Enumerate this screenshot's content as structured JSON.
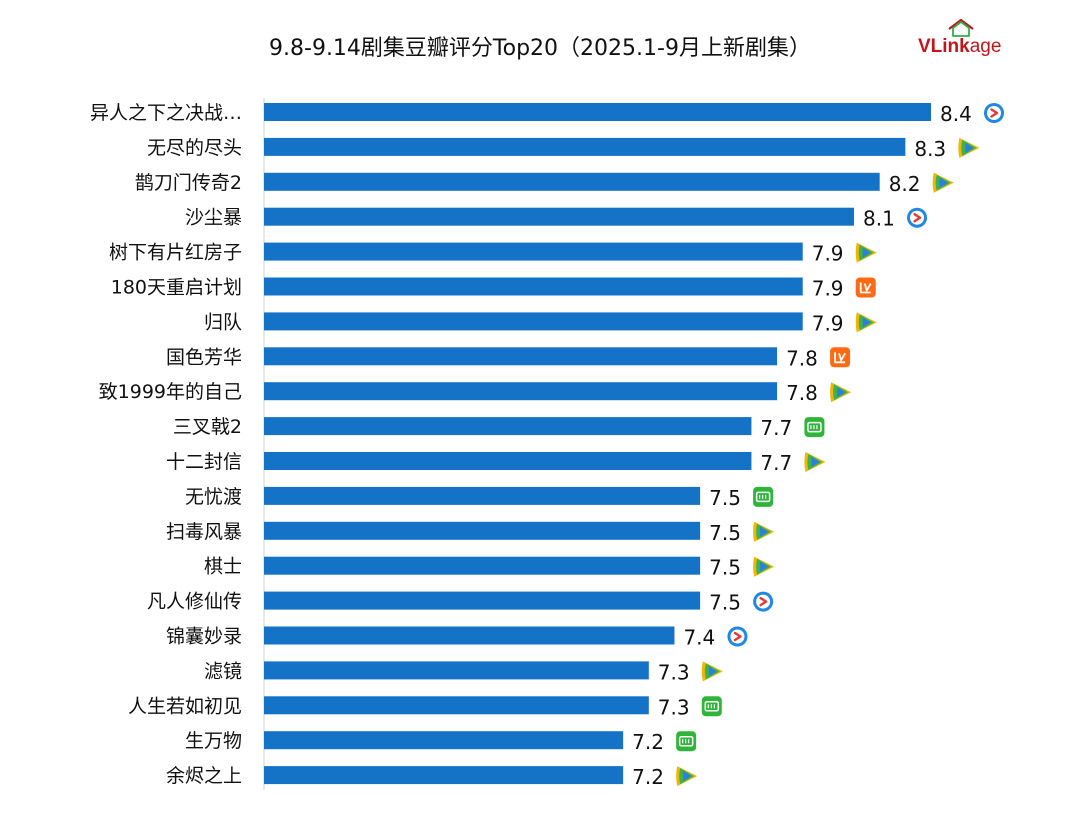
{
  "title": "9.8-9.14剧集豆瓣评分Top20（2025.1-9月上新剧集）",
  "brand": {
    "part1": "VLink",
    "part2": "age",
    "colors": {
      "primary": "#c3161c",
      "accent": "#2db34a"
    }
  },
  "platform_icons": {
    "youku": {
      "icon": "youku-icon",
      "color": "#1e88e5",
      "accent": "#e53935"
    },
    "tencent": {
      "icon": "tencent-video-icon",
      "color": "#2e7de1",
      "accent": "#f5b400",
      "accent2": "#3cb44b"
    },
    "mango": {
      "icon": "mango-tv-icon",
      "color": "#ff6a13"
    },
    "iqiyi": {
      "icon": "iqiyi-icon",
      "color": "#2fb53a"
    }
  },
  "chart_data": {
    "type": "bar",
    "orientation": "horizontal",
    "bar_color": "#1573c7",
    "categories": [
      "异人之下之决战…",
      "无尽的尽头",
      "鹊刀门传奇2",
      "沙尘暴",
      "树下有片红房子",
      "180天重启计划",
      "归队",
      "国色芳华",
      "致1999年的自己",
      "三叉戟2",
      "十二封信",
      "无忧渡",
      "扫毒风暴",
      "棋士",
      "凡人修仙传",
      "锦囊妙录",
      "滤镜",
      "人生若如初见",
      "生万物",
      "余烬之上"
    ],
    "values": [
      8.4,
      8.3,
      8.2,
      8.1,
      7.9,
      7.9,
      7.9,
      7.8,
      7.8,
      7.7,
      7.7,
      7.5,
      7.5,
      7.5,
      7.5,
      7.4,
      7.3,
      7.3,
      7.2,
      7.2
    ],
    "value_labels": [
      "8.4",
      "8.3",
      "8.2",
      "8.1",
      "7.9",
      "7.9",
      "7.9",
      "7.8",
      "7.8",
      "7.7",
      "7.7",
      "7.5",
      "7.5",
      "7.5",
      "7.5",
      "7.4",
      "7.3",
      "7.3",
      "7.2",
      "7.2"
    ],
    "platforms": [
      "youku",
      "tencent",
      "tencent",
      "youku",
      "tencent",
      "mango",
      "tencent",
      "mango",
      "tencent",
      "iqiyi",
      "tencent",
      "iqiyi",
      "tencent",
      "tencent",
      "youku",
      "youku",
      "tencent",
      "iqiyi",
      "iqiyi",
      "tencent"
    ],
    "xlim": [
      5.8,
      8.4
    ],
    "grid": false,
    "legend": "none"
  }
}
